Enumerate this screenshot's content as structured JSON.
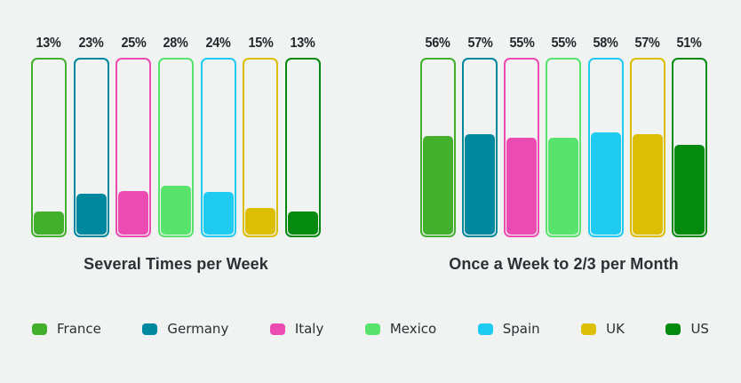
{
  "page": {
    "background_color": "#f1f2f2",
    "text_color": "#2c3136"
  },
  "chart_data": {
    "type": "bar",
    "unit": "%",
    "categories": [
      "France",
      "Germany",
      "Italy",
      "Mexico",
      "Spain",
      "UK",
      "US"
    ],
    "colors": [
      "#43b02d",
      "#00899e",
      "#ec4bb1",
      "#57e36c",
      "#1fcbf1",
      "#dcbe04",
      "#058a10"
    ],
    "groups": [
      {
        "title": "Several Times per Week",
        "values": [
          13,
          23,
          25,
          28,
          24,
          15,
          13
        ]
      },
      {
        "title": "Once a Week to 2/3 per Month",
        "values": [
          56,
          57,
          55,
          55,
          58,
          57,
          51
        ]
      }
    ],
    "ylim": [
      0,
      100
    ],
    "grid": false,
    "legend_position": "bottom",
    "bar_style": "outlined-rounded-frame-with-proportional-fill"
  },
  "legend": {
    "items": [
      {
        "label": "France",
        "color": "#43b02d"
      },
      {
        "label": "Germany",
        "color": "#00899e"
      },
      {
        "label": "Italy",
        "color": "#ec4bb1"
      },
      {
        "label": "Mexico",
        "color": "#57e36c"
      },
      {
        "label": "Spain",
        "color": "#1fcbf1"
      },
      {
        "label": "UK",
        "color": "#dcbe04"
      },
      {
        "label": "US",
        "color": "#058a10"
      }
    ]
  }
}
